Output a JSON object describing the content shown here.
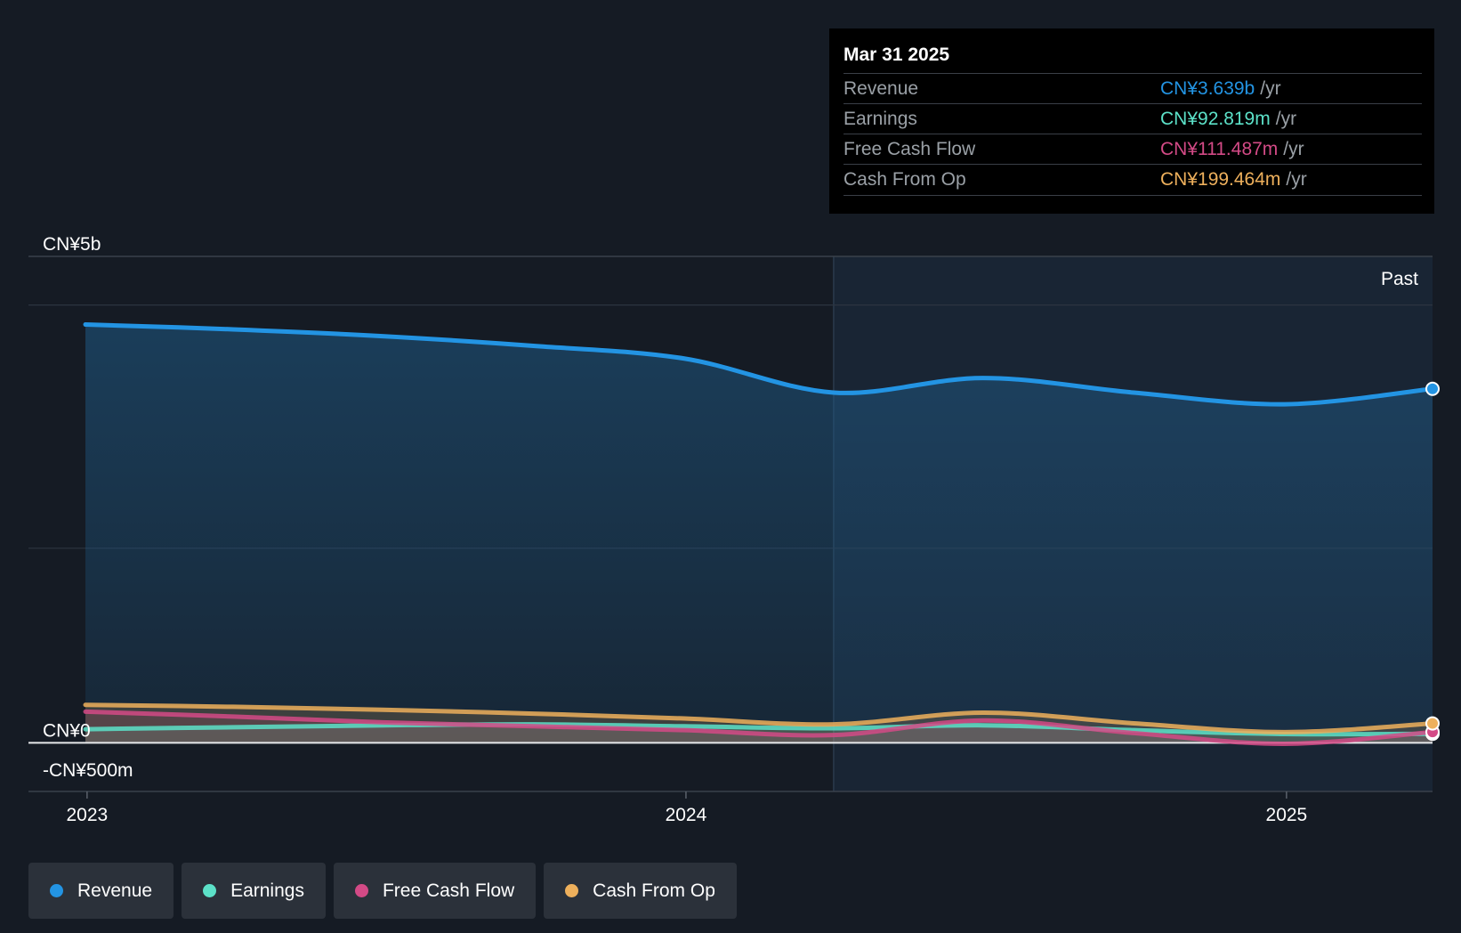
{
  "tooltip": {
    "date": "Mar 31 2025",
    "rows": [
      {
        "label": "Revenue",
        "value": "CN¥3.639b",
        "unit": "/yr",
        "color": "#2394e3"
      },
      {
        "label": "Earnings",
        "value": "CN¥92.819m",
        "unit": "/yr",
        "color": "#5ce1c8"
      },
      {
        "label": "Free Cash Flow",
        "value": "CN¥111.487m",
        "unit": "/yr",
        "color": "#d34a86"
      },
      {
        "label": "Cash From Op",
        "value": "CN¥199.464m",
        "unit": "/yr",
        "color": "#eeb05c"
      }
    ]
  },
  "legend": [
    {
      "label": "Revenue",
      "color": "#2394e3"
    },
    {
      "label": "Earnings",
      "color": "#5ce1c8"
    },
    {
      "label": "Free Cash Flow",
      "color": "#d34a86"
    },
    {
      "label": "Cash From Op",
      "color": "#eeb05c"
    }
  ],
  "chart_data": {
    "type": "area",
    "past_label": "Past",
    "y_tick_labels": [
      {
        "value": 5000,
        "label": "CN¥5b"
      },
      {
        "value": 0,
        "label": "CN¥0"
      },
      {
        "value": -500,
        "label": "-CN¥500m"
      }
    ],
    "ylim": [
      -500,
      5000
    ],
    "gridlines": [
      4500,
      2000
    ],
    "x_ticks": [
      {
        "date": "2023-01-01",
        "label": "2023"
      },
      {
        "date": "2024-01-01",
        "label": "2024"
      },
      {
        "date": "2025-01-01",
        "label": "2025"
      }
    ],
    "x_range": [
      "2022-12-31",
      "2025-03-31"
    ],
    "highlight_from": "2024-03-31",
    "series": [
      {
        "name": "Revenue",
        "color": "#2394e3",
        "x": [
          "2022-12-31",
          "2023-03-31",
          "2023-06-30",
          "2023-09-30",
          "2023-12-31",
          "2024-03-31",
          "2024-06-30",
          "2024-09-30",
          "2024-12-31",
          "2025-03-31"
        ],
        "values": [
          4300,
          4250,
          4180,
          4080,
          3950,
          3600,
          3750,
          3600,
          3480,
          3639
        ]
      },
      {
        "name": "Earnings",
        "color": "#5ce1c8",
        "x": [
          "2022-12-31",
          "2023-03-31",
          "2023-06-30",
          "2023-09-30",
          "2023-12-31",
          "2024-03-31",
          "2024-06-30",
          "2024-09-30",
          "2024-12-31",
          "2025-03-31"
        ],
        "values": [
          140,
          160,
          180,
          190,
          170,
          150,
          180,
          130,
          90,
          92.819
        ]
      },
      {
        "name": "Free Cash Flow",
        "color": "#d34a86",
        "x": [
          "2022-12-31",
          "2023-03-31",
          "2023-06-30",
          "2023-09-30",
          "2023-12-31",
          "2024-03-31",
          "2024-06-30",
          "2024-09-30",
          "2024-12-31",
          "2025-03-31"
        ],
        "values": [
          320,
          270,
          210,
          170,
          130,
          80,
          230,
          100,
          -10,
          111.487
        ]
      },
      {
        "name": "Cash From Op",
        "color": "#eeb05c",
        "x": [
          "2022-12-31",
          "2023-03-31",
          "2023-06-30",
          "2023-09-30",
          "2023-12-31",
          "2024-03-31",
          "2024-06-30",
          "2024-09-30",
          "2024-12-31",
          "2025-03-31"
        ],
        "values": [
          390,
          370,
          340,
          300,
          250,
          190,
          310,
          200,
          110,
          199.464
        ]
      }
    ]
  }
}
